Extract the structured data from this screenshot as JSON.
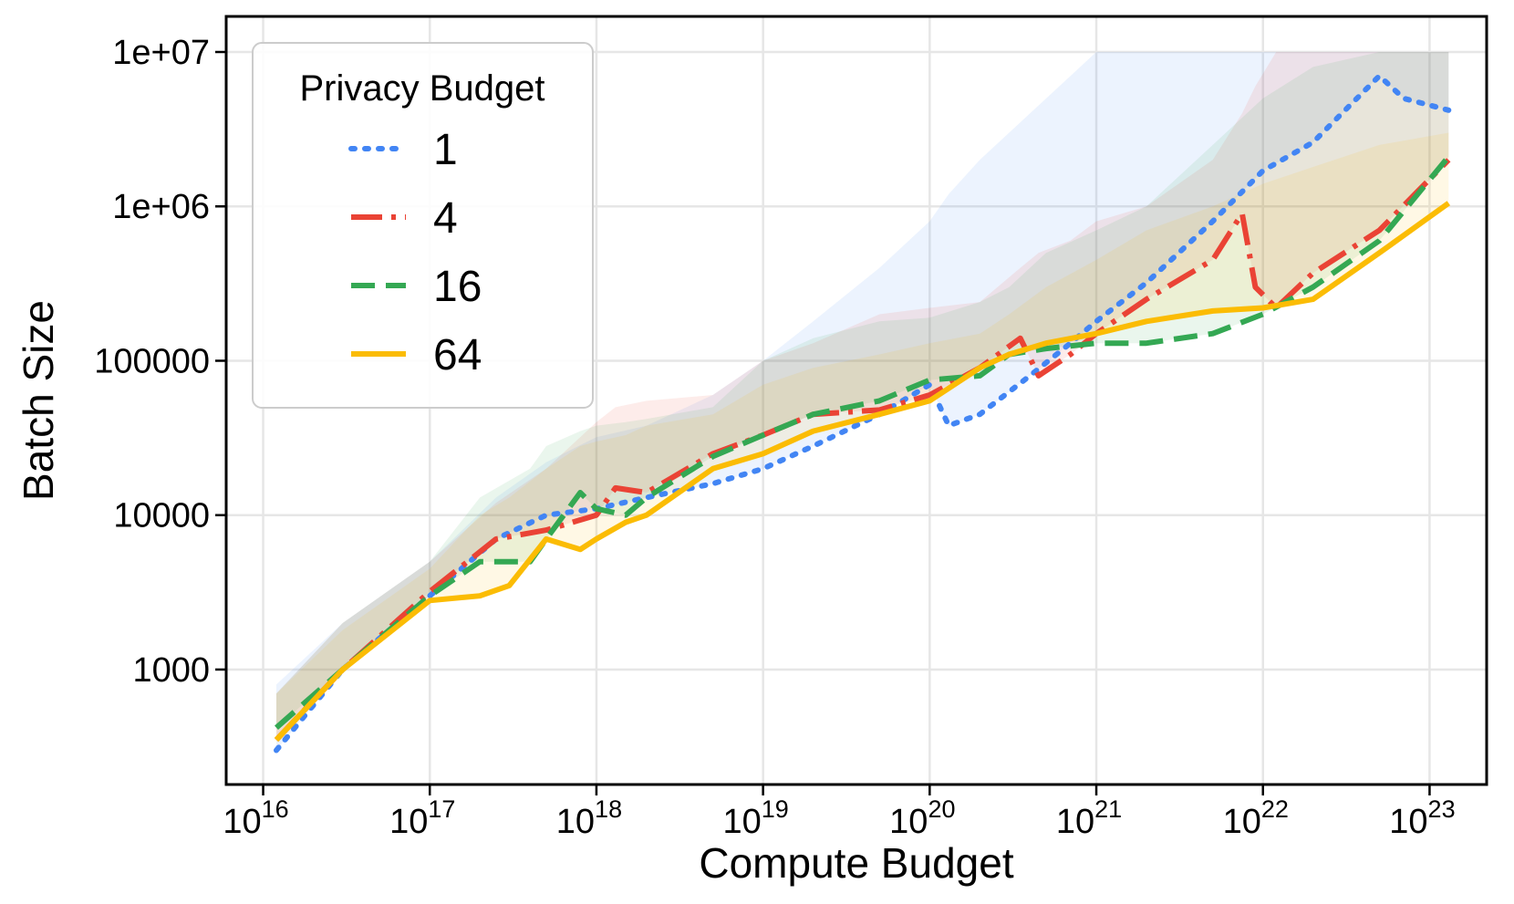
{
  "chart_data": {
    "type": "line",
    "xlabel": "Compute Budget",
    "ylabel": "Batch Size",
    "xscale": "log",
    "yscale": "log",
    "xlim": [
      6000000000000000.0,
      2.2e+23
    ],
    "ylim": [
      180,
      17000000
    ],
    "grid": true,
    "legend": {
      "title": "Privacy Budget",
      "placement": "top-left"
    },
    "xticks": [
      {
        "base": "10",
        "exp": "16",
        "value": 1e+16
      },
      {
        "base": "10",
        "exp": "17",
        "value": 1e+17
      },
      {
        "base": "10",
        "exp": "18",
        "value": 1e+18
      },
      {
        "base": "10",
        "exp": "19",
        "value": 1e+19
      },
      {
        "base": "10",
        "exp": "20",
        "value": 1e+20
      },
      {
        "base": "10",
        "exp": "21",
        "value": 1e+21
      },
      {
        "base": "10",
        "exp": "22",
        "value": 1e+22
      },
      {
        "base": "10",
        "exp": "23",
        "value": 1e+23
      }
    ],
    "yticks": [
      {
        "label": "1000",
        "value": 1000
      },
      {
        "label": "10000",
        "value": 10000
      },
      {
        "label": "100000",
        "value": 100000
      },
      {
        "label": "1e+06",
        "value": 1000000
      },
      {
        "label": "1e+07",
        "value": 10000000
      }
    ],
    "series": [
      {
        "name": "1",
        "color": "#4285F4",
        "style": "dotted",
        "x": [
          1.2e+16,
          3e+16,
          1e+17,
          2.5e+17,
          5e+17,
          1e+18,
          2e+18,
          5e+18,
          1e+19,
          2e+19,
          5e+19,
          1e+20,
          1.3e+20,
          2e+20,
          4e+20,
          7e+20,
          1e+21,
          2e+21,
          5e+21,
          1e+22,
          2e+22,
          5e+22,
          7e+22,
          1.3e+23
        ],
        "y": [
          300,
          1000,
          3000,
          7000,
          10000,
          11000,
          13000,
          16000,
          20000,
          28000,
          45000,
          70000,
          38000,
          45000,
          80000,
          130000,
          180000,
          320000,
          800000,
          1700000,
          2600000,
          7000000,
          5000000,
          4200000
        ],
        "upper": [
          800,
          2000,
          5000,
          13000,
          22000,
          32000,
          38000,
          60000,
          100000,
          180000,
          400000,
          800000,
          1200000,
          2000000,
          4000000,
          7000000,
          10000000,
          10000000,
          10000000,
          10000000,
          10000000,
          10000000,
          10000000,
          10000000
        ]
      },
      {
        "name": "4",
        "color": "#EA4335",
        "style": "dashdot",
        "x": [
          1.2e+16,
          3e+16,
          1e+17,
          2.5e+17,
          5e+17,
          1e+18,
          1.3e+18,
          2e+18,
          5e+18,
          1e+19,
          2e+19,
          5e+19,
          1e+20,
          2e+20,
          3.5e+20,
          4.5e+20,
          7e+20,
          1e+21,
          2e+21,
          5e+21,
          7.5e+21,
          9e+21,
          1.2e+22,
          2e+22,
          5e+22,
          1.3e+23
        ],
        "y": [
          350,
          1000,
          3200,
          7000,
          8000,
          10000,
          15000,
          14000,
          25000,
          33000,
          45000,
          48000,
          60000,
          90000,
          140000,
          80000,
          110000,
          150000,
          250000,
          450000,
          900000,
          300000,
          220000,
          370000,
          700000,
          2000000
        ],
        "upper": [
          700,
          2000,
          5000,
          12000,
          20000,
          40000,
          50000,
          55000,
          60000,
          100000,
          130000,
          200000,
          220000,
          240000,
          400000,
          500000,
          600000,
          800000,
          1000000,
          2000000,
          4000000,
          6000000,
          10000000,
          10000000,
          10000000,
          10000000
        ]
      },
      {
        "name": "16",
        "color": "#34A853",
        "style": "dashed",
        "x": [
          1.2e+16,
          3e+16,
          1e+17,
          2e+17,
          4e+17,
          5e+17,
          8e+17,
          1e+18,
          1.5e+18,
          2e+18,
          5e+18,
          1e+19,
          2e+19,
          5e+19,
          1e+20,
          2e+20,
          3e+20,
          5e+20,
          1e+21,
          2e+21,
          5e+21,
          1e+22,
          2e+22,
          5e+22,
          1.3e+23
        ],
        "y": [
          420,
          1000,
          3000,
          5000,
          5000,
          7000,
          14000,
          11000,
          10000,
          13000,
          24000,
          33000,
          45000,
          55000,
          75000,
          80000,
          110000,
          120000,
          130000,
          130000,
          150000,
          200000,
          300000,
          600000,
          2100000
        ],
        "upper": [
          700,
          2000,
          5000,
          13000,
          20000,
          28000,
          35000,
          38000,
          40000,
          42000,
          50000,
          100000,
          140000,
          180000,
          190000,
          240000,
          300000,
          500000,
          700000,
          1000000,
          2500000,
          5000000,
          8000000,
          10000000,
          10000000
        ]
      },
      {
        "name": "64",
        "color": "#FBBC04",
        "style": "solid",
        "x": [
          1.2e+16,
          3e+16,
          1e+17,
          2e+17,
          3e+17,
          5e+17,
          8e+17,
          1e+18,
          1.5e+18,
          2e+18,
          5e+18,
          1e+19,
          2e+19,
          5e+19,
          1e+20,
          2e+20,
          3e+20,
          5e+20,
          1e+21,
          2e+21,
          5e+21,
          1e+22,
          2e+22,
          5e+22,
          1.3e+23
        ],
        "y": [
          350,
          1000,
          2800,
          3000,
          3500,
          7000,
          6000,
          7000,
          9000,
          10000,
          20000,
          25000,
          35000,
          45000,
          55000,
          90000,
          110000,
          130000,
          150000,
          180000,
          210000,
          220000,
          250000,
          500000,
          1050000
        ],
        "upper": [
          700,
          1800,
          4500,
          10000,
          13000,
          20000,
          28000,
          30000,
          33000,
          38000,
          45000,
          70000,
          90000,
          110000,
          130000,
          150000,
          200000,
          300000,
          450000,
          700000,
          1000000,
          1400000,
          1800000,
          2500000,
          3000000
        ]
      }
    ]
  }
}
